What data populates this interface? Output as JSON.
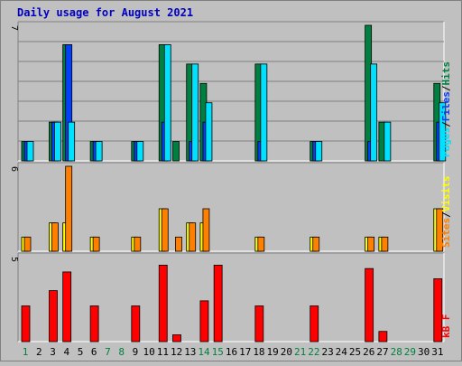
{
  "chart_data": {
    "type": "bar",
    "title": "Daily usage for August 2021",
    "categories": [
      "1",
      "2",
      "3",
      "4",
      "5",
      "6",
      "7",
      "8",
      "9",
      "10",
      "11",
      "12",
      "13",
      "14",
      "15",
      "16",
      "17",
      "18",
      "19",
      "20",
      "21",
      "22",
      "23",
      "24",
      "25",
      "26",
      "27",
      "28",
      "29",
      "30",
      "31"
    ],
    "weekend_days": [
      "1",
      "7",
      "8",
      "14",
      "15",
      "21",
      "22",
      "28",
      "29"
    ],
    "panels": [
      {
        "id": "hits-files-pages",
        "ymax_label": "7",
        "ylim": [
          0,
          7
        ],
        "legend": [
          "Pages",
          "Files",
          "Hits"
        ],
        "series": [
          {
            "name": "Hits",
            "color": "#008040",
            "values": [
              1,
              0,
              2,
              6,
              0,
              1,
              0,
              0,
              1,
              0,
              6,
              1,
              5,
              4,
              0,
              0,
              0,
              5,
              0,
              0,
              0,
              1,
              0,
              0,
              0,
              7,
              2,
              0,
              0,
              0,
              4
            ]
          },
          {
            "name": "Files",
            "color": "#0040ff",
            "values": [
              1,
              0,
              2,
              6,
              0,
              1,
              0,
              0,
              1,
              0,
              2,
              0,
              1,
              2,
              0,
              0,
              0,
              1,
              0,
              0,
              0,
              1,
              0,
              0,
              0,
              1,
              0,
              0,
              0,
              0,
              2
            ]
          },
          {
            "name": "Pages",
            "color": "#00e0ff",
            "values": [
              1,
              0,
              2,
              2,
              0,
              1,
              0,
              0,
              1,
              0,
              6,
              0,
              5,
              3,
              0,
              0,
              0,
              5,
              0,
              0,
              0,
              1,
              0,
              0,
              0,
              5,
              2,
              0,
              0,
              0,
              3
            ]
          }
        ]
      },
      {
        "id": "visits-sites",
        "ymax_label": "6",
        "ylim": [
          0,
          6
        ],
        "legend": [
          "Sites",
          "Visits"
        ],
        "series": [
          {
            "name": "Visits",
            "color": "#ffff00",
            "values": [
              1,
              0,
              2,
              2,
              0,
              1,
              0,
              0,
              1,
              0,
              3,
              0,
              2,
              2,
              0,
              0,
              0,
              1,
              0,
              0,
              0,
              1,
              0,
              0,
              0,
              1,
              1,
              0,
              0,
              0,
              3
            ]
          },
          {
            "name": "Sites",
            "color": "#ff8000",
            "values": [
              1,
              0,
              2,
              6,
              0,
              1,
              0,
              0,
              1,
              0,
              3,
              1,
              2,
              3,
              0,
              0,
              0,
              1,
              0,
              0,
              0,
              1,
              0,
              0,
              0,
              1,
              1,
              0,
              0,
              0,
              3
            ]
          }
        ]
      },
      {
        "id": "kbytes",
        "ymax_label": "5",
        "ylim": [
          0,
          5
        ],
        "legend": [
          "kB F"
        ],
        "series": [
          {
            "name": "kB F",
            "color": "#ff0000",
            "values": [
              2.1,
              0,
              3.0,
              4.1,
              0,
              2.1,
              0,
              0,
              2.1,
              0,
              4.5,
              0.4,
              0,
              2.4,
              4.5,
              0,
              0,
              2.1,
              0,
              0,
              0,
              2.1,
              0,
              0,
              0,
              4.3,
              0.6,
              0,
              0,
              0,
              3.7
            ]
          }
        ]
      }
    ],
    "grid": true
  },
  "colors": {
    "background": "#c0c0c0",
    "title": "#0000c0",
    "weekday_label": "#000000",
    "weekend_label": "#008040",
    "legend_sep": "#000000"
  }
}
